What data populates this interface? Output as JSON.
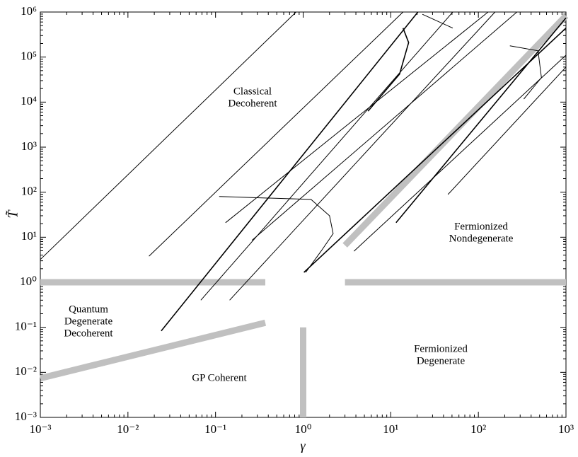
{
  "chart_data": {
    "type": "line",
    "xscale": "log",
    "yscale": "log",
    "xlabel": "γ",
    "ylabel": "T̃",
    "xlim": [
      0.001,
      1000
    ],
    "ylim": [
      0.001,
      1000000
    ],
    "xticks": [
      {
        "value": 0.001,
        "label": "10⁻³"
      },
      {
        "value": 0.01,
        "label": "10⁻²"
      },
      {
        "value": 0.1,
        "label": "10⁻¹"
      },
      {
        "value": 1,
        "label": "10⁰"
      },
      {
        "value": 10,
        "label": "10¹"
      },
      {
        "value": 100,
        "label": "10²"
      },
      {
        "value": 1000,
        "label": "10³"
      }
    ],
    "yticks": [
      {
        "value": 0.001,
        "label": "10⁻³"
      },
      {
        "value": 0.01,
        "label": "10⁻²"
      },
      {
        "value": 0.1,
        "label": "10⁻¹"
      },
      {
        "value": 1,
        "label": "10⁰"
      },
      {
        "value": 10,
        "label": "10¹"
      },
      {
        "value": 100,
        "label": "10²"
      },
      {
        "value": 1000,
        "label": "10³"
      },
      {
        "value": 10000,
        "label": "10⁴"
      },
      {
        "value": 100000,
        "label": "10⁵"
      },
      {
        "value": 1000000,
        "label": "10⁶"
      }
    ],
    "series": [
      {
        "color": "#c0c0c0",
        "width": 9,
        "x": [
          0.001,
          0.37
        ],
        "values": [
          1,
          1
        ]
      },
      {
        "color": "#c0c0c0",
        "width": 9,
        "x": [
          3,
          1000
        ],
        "values": [
          1,
          1
        ]
      },
      {
        "color": "#c0c0c0",
        "width": 9,
        "x": [
          1,
          1
        ],
        "values": [
          0.001,
          0.1
        ]
      },
      {
        "color": "#c0c0c0",
        "width": 9,
        "x": [
          0.001,
          0.37
        ],
        "values": [
          0.0074,
          0.126
        ]
      },
      {
        "color": "#c0c0c0",
        "width": 9,
        "x": [
          3,
          1000
        ],
        "values": [
          6.6,
          830000
        ]
      },
      {
        "color": "#000000",
        "width": 1,
        "x": [
          0.001,
          0.83
        ],
        "values": [
          3.2,
          1000000
        ]
      },
      {
        "color": "#000000",
        "width": 1,
        "x": [
          0.0174,
          13.8
        ],
        "values": [
          3.8,
          1000000
        ]
      },
      {
        "color": "#000000",
        "width": 1.6,
        "x": [
          0.024,
          20.4
        ],
        "values": [
          0.083,
          1000000
        ]
      },
      {
        "color": "#000000",
        "width": 1,
        "x": [
          0.068,
          51
        ],
        "values": [
          0.4,
          1000000
        ]
      },
      {
        "color": "#000000",
        "width": 1,
        "x": [
          0.145,
          155
        ],
        "values": [
          0.4,
          1000000
        ]
      },
      {
        "color": "#000000",
        "width": 1.6,
        "x": [
          1.02,
          1000
        ],
        "values": [
          1.66,
          440000
        ]
      },
      {
        "color": "#000000",
        "width": 1,
        "x": [
          3.8,
          1000
        ],
        "values": [
          4.9,
          110000
        ]
      },
      {
        "color": "#000000",
        "width": 1,
        "x": [
          45,
          1000
        ],
        "values": [
          89,
          60000
        ]
      },
      {
        "color": "#000000",
        "width": 1.6,
        "x": [
          11.5,
          1000
        ],
        "values": [
          21,
          740000
        ]
      },
      {
        "color": "#000000",
        "width": 1,
        "x": [
          0.26,
          275
        ],
        "values": [
          8.5,
          1000000
        ]
      },
      {
        "color": "#000000",
        "width": 1,
        "x": [
          0.13,
          129
        ],
        "values": [
          21,
          1000000
        ]
      },
      {
        "color": "#000000",
        "width": 1,
        "x": [
          0.11,
          1.23,
          2.0,
          2.2,
          1.6,
          1.07
        ],
        "values": [
          80,
          69,
          30,
          12,
          4.9,
          1.66
        ]
      },
      {
        "color": "#000000",
        "width": 1.6,
        "x": [
          13.8,
          16,
          12.6,
          5.5
        ],
        "values": [
          440000,
          210000,
          42000,
          6300
        ]
      },
      {
        "color": "#000000",
        "width": 1,
        "x": [
          229,
          480,
          525,
          330
        ],
        "values": [
          178000,
          138000,
          35000,
          11700
        ]
      },
      {
        "color": "#000000",
        "width": 1,
        "x": [
          23,
          51
        ],
        "values": [
          890000,
          440000
        ]
      }
    ],
    "annotations": [
      {
        "lines": [
          "Classical",
          "Decoherent"
        ]
      },
      {
        "lines": [
          "Fermionized",
          "Nondegenerate"
        ]
      },
      {
        "lines": [
          "Quantum",
          "Degenerate",
          "Decoherent"
        ]
      },
      {
        "lines": [
          "GP Coherent"
        ]
      },
      {
        "lines": [
          "Fermionized",
          "Degenerate"
        ]
      }
    ]
  }
}
